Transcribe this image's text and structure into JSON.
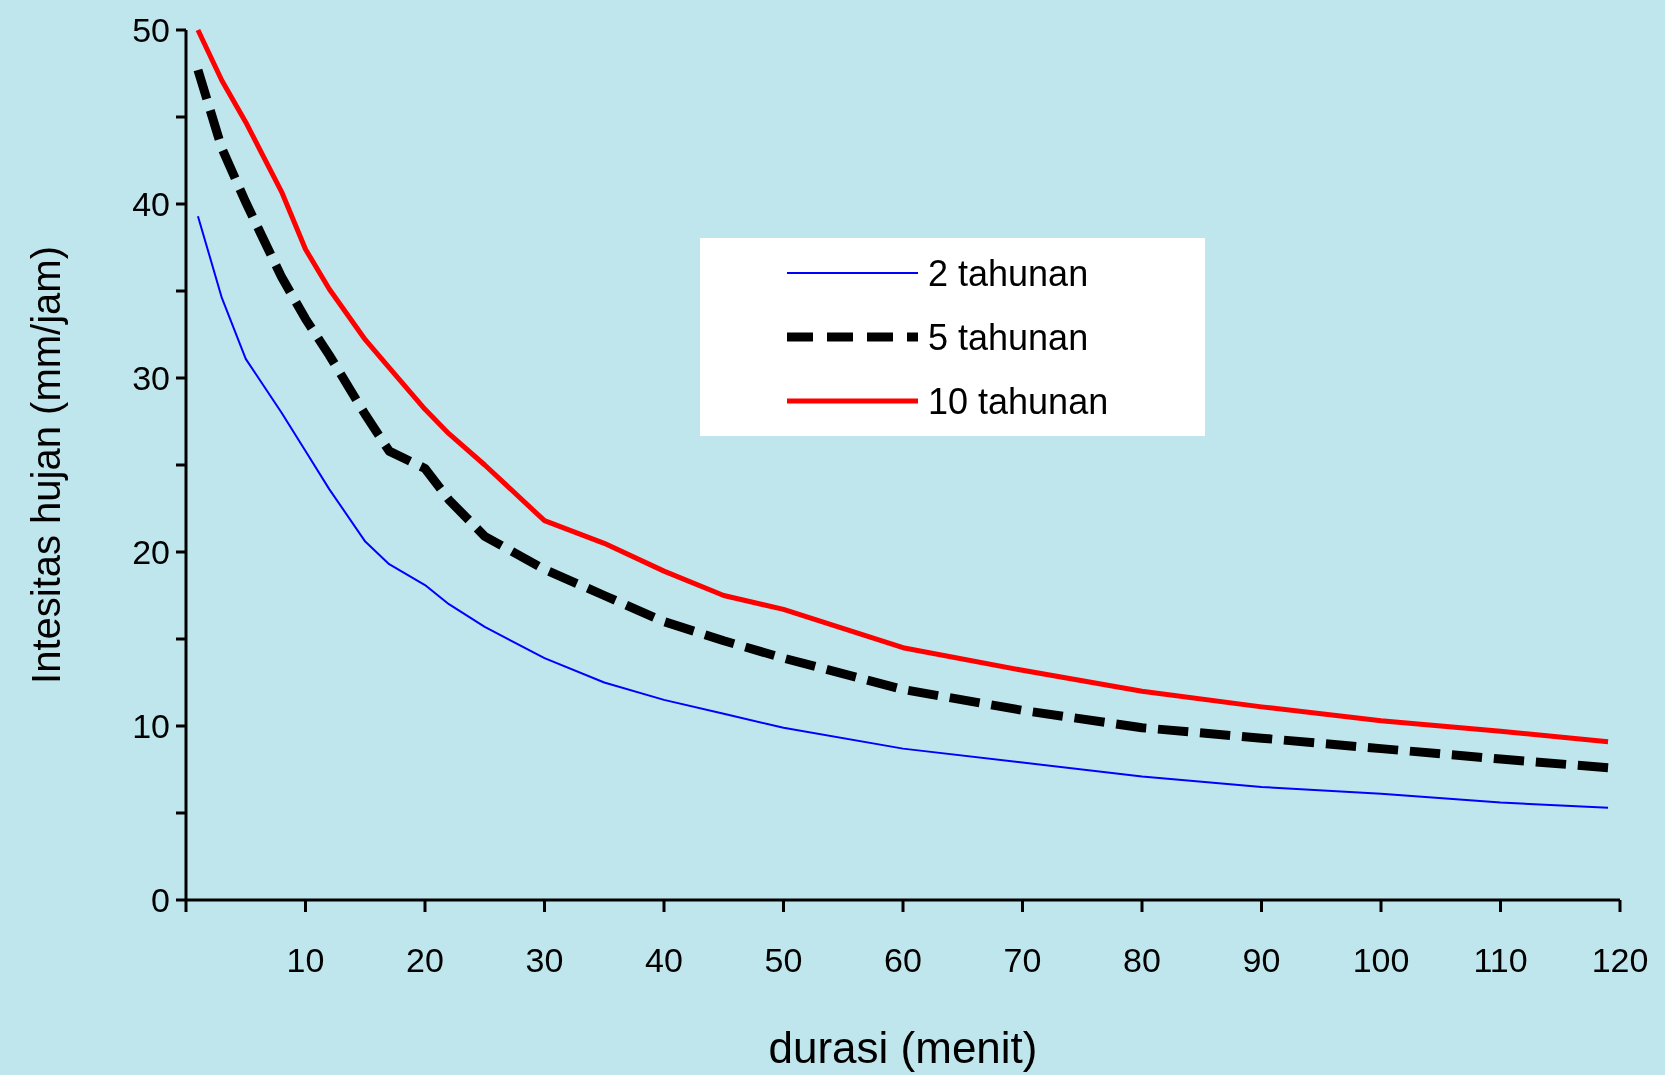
{
  "chart_data": {
    "type": "line",
    "xlabel": "durasi (menit)",
    "ylabel": "Intesitas hujan (mm/jam)",
    "xlim": [
      0,
      120
    ],
    "ylim": [
      0,
      50
    ],
    "xticks": [
      {
        "value": 0,
        "label": null
      },
      10,
      20,
      30,
      40,
      50,
      60,
      70,
      80,
      90,
      100,
      110,
      120
    ],
    "yticks": [
      0,
      {
        "value": 5,
        "label": null
      },
      10,
      {
        "value": 15,
        "label": null
      },
      20,
      {
        "value": 25,
        "label": null
      },
      30,
      {
        "value": 35,
        "label": null
      },
      40,
      {
        "value": 45,
        "label": null
      },
      50
    ],
    "x": [
      1,
      3,
      5,
      8,
      10,
      12,
      15,
      17,
      20,
      22,
      25,
      30,
      35,
      40,
      45,
      50,
      60,
      70,
      80,
      90,
      100,
      110,
      119
    ],
    "legend": "top",
    "grid": false,
    "series": [
      {
        "name": "2 tahunan",
        "color": "#0000ff",
        "line_style": "solid",
        "values": [
          39.3,
          34.6,
          31.1,
          28,
          25.8,
          23.6,
          20.6,
          19.3,
          18.1,
          17,
          15.7,
          13.9,
          12.5,
          11.5,
          10.7,
          9.9,
          8.7,
          7.9,
          7.1,
          6.5,
          6.1,
          5.6,
          5.3
        ]
      },
      {
        "name": "5 tahunan",
        "color": "#000000",
        "line_style": "dashed",
        "values": [
          47.7,
          43.2,
          40.1,
          35.8,
          33.4,
          31.3,
          27.9,
          25.8,
          24.8,
          23,
          20.9,
          19,
          17.5,
          16,
          14.9,
          13.9,
          12.1,
          10.9,
          9.9,
          9.3,
          8.7,
          8.1,
          7.6
        ]
      },
      {
        "name": "10 tahunan",
        "color": "#ff0000",
        "line_style": "solid",
        "values": [
          50,
          47.1,
          44.7,
          40.7,
          37.4,
          35.1,
          32.2,
          30.6,
          28.2,
          26.8,
          25,
          21.8,
          20.5,
          18.9,
          17.5,
          16.7,
          14.5,
          13.2,
          12,
          11.1,
          10.3,
          9.7,
          9.1
        ]
      }
    ]
  }
}
